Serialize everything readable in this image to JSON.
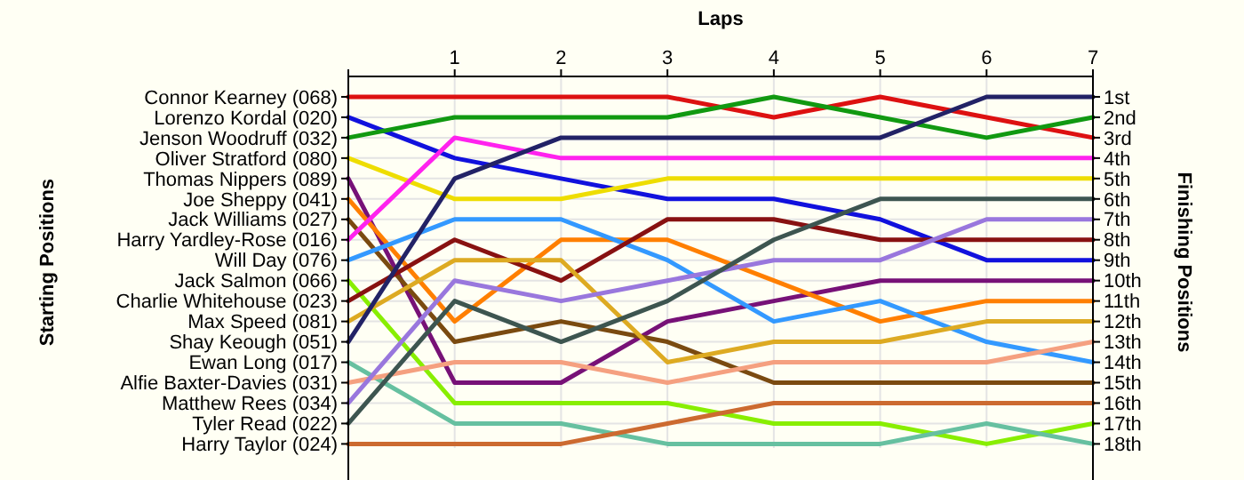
{
  "chart_data": {
    "type": "line",
    "xlabel": "Laps",
    "ylabel": "Finishing Positions",
    "x": [
      0,
      1,
      2,
      3,
      4,
      5,
      6,
      7
    ],
    "xlim": [
      0,
      7
    ],
    "xticks": [
      {
        "value": 0,
        "label": null
      },
      1,
      2,
      3,
      4,
      5,
      6,
      7
    ],
    "annotations": [
      "Starting Positions",
      "Connor Kearney (068)",
      "Lorenzo Kordal (020)",
      "Jenson Woodruff (032)",
      "Oliver Stratford (080)",
      "Thomas Nippers (089)",
      "Joe Sheppy (041)",
      "Jack Williams (027)",
      "Harry Yardley-Rose (016)",
      "Will Day (076)",
      "Jack Salmon (066)",
      "Charlie Whitehouse (023)",
      "Max Speed (081)",
      "Shay Keough (051)",
      "Ewan Long (017)",
      "Alfie Baxter-Davies (031)",
      "Matthew Rees (034)",
      "Tyler Read (022)",
      "Harry Taylor (024)"
    ],
    "ylim": [
      18.2,
      0
    ],
    "yticks": [
      {
        "value": 1,
        "label": "1st"
      },
      {
        "value": 2,
        "label": "2nd"
      },
      {
        "value": 3,
        "label": "3rd"
      },
      {
        "value": 4,
        "label": "4th"
      },
      {
        "value": 5,
        "label": "5th"
      },
      {
        "value": 6,
        "label": "6th"
      },
      {
        "value": 7,
        "label": "7th"
      },
      {
        "value": 8,
        "label": "8th"
      },
      {
        "value": 9,
        "label": "9th"
      },
      {
        "value": 10,
        "label": "10th"
      },
      {
        "value": 11,
        "label": "11th"
      },
      {
        "value": 12,
        "label": "12th"
      },
      {
        "value": 13,
        "label": "13th"
      },
      {
        "value": 14,
        "label": "14th"
      },
      {
        "value": 15,
        "label": "15th"
      },
      {
        "value": 16,
        "label": "16th"
      },
      {
        "value": 17,
        "label": "17th"
      },
      {
        "value": 18,
        "label": "18th"
      }
    ],
    "grid": true,
    "marker": "none",
    "line_style": "solid",
    "series": [
      {
        "color": "#dd1111",
        "values": [
          1,
          1,
          1,
          1,
          2,
          1,
          2,
          3
        ]
      },
      {
        "color": "#1111dd",
        "values": [
          2,
          4,
          5,
          6,
          6,
          7,
          9,
          9
        ]
      },
      {
        "color": "#119911",
        "values": [
          3,
          2,
          2,
          2,
          1,
          2,
          3,
          2
        ]
      },
      {
        "color": "#eedd00",
        "values": [
          4,
          6,
          6,
          5,
          5,
          5,
          5,
          5
        ]
      },
      {
        "color": "#771177",
        "values": [
          5,
          15,
          15,
          12,
          11,
          10,
          10,
          10
        ]
      },
      {
        "color": "#ff7f00",
        "values": [
          6,
          12,
          8,
          8,
          10,
          12,
          11,
          11
        ]
      },
      {
        "color": "#7a4a10",
        "values": [
          7,
          13,
          12,
          13,
          15,
          15,
          15,
          15
        ]
      },
      {
        "color": "#ff22ee",
        "values": [
          8,
          3,
          4,
          4,
          4,
          4,
          4,
          4
        ]
      },
      {
        "color": "#3399ff",
        "values": [
          9,
          7,
          7,
          9,
          12,
          11,
          13,
          14
        ]
      },
      {
        "color": "#88ee00",
        "values": [
          10,
          16,
          16,
          16,
          17,
          17,
          18,
          17
        ]
      },
      {
        "color": "#881111",
        "values": [
          11,
          8,
          10,
          7,
          7,
          8,
          8,
          8
        ]
      },
      {
        "color": "#ddaa22",
        "values": [
          12,
          9,
          9,
          14,
          13,
          13,
          12,
          12
        ]
      },
      {
        "color": "#222266",
        "values": [
          13,
          5,
          3,
          3,
          3,
          3,
          1,
          1
        ]
      },
      {
        "color": "#66c0a0",
        "values": [
          14,
          17,
          17,
          18,
          18,
          18,
          17,
          18
        ]
      },
      {
        "color": "#f5a080",
        "values": [
          15,
          14,
          14,
          15,
          14,
          14,
          14,
          13
        ]
      },
      {
        "color": "#9977dd",
        "values": [
          16,
          10,
          11,
          10,
          9,
          9,
          7,
          7
        ]
      },
      {
        "color": "#3d5550",
        "values": [
          17,
          11,
          13,
          11,
          8,
          6,
          6,
          6
        ]
      },
      {
        "color": "#cc6a30",
        "values": [
          18,
          18,
          18,
          17,
          16,
          16,
          16,
          16
        ]
      }
    ]
  }
}
